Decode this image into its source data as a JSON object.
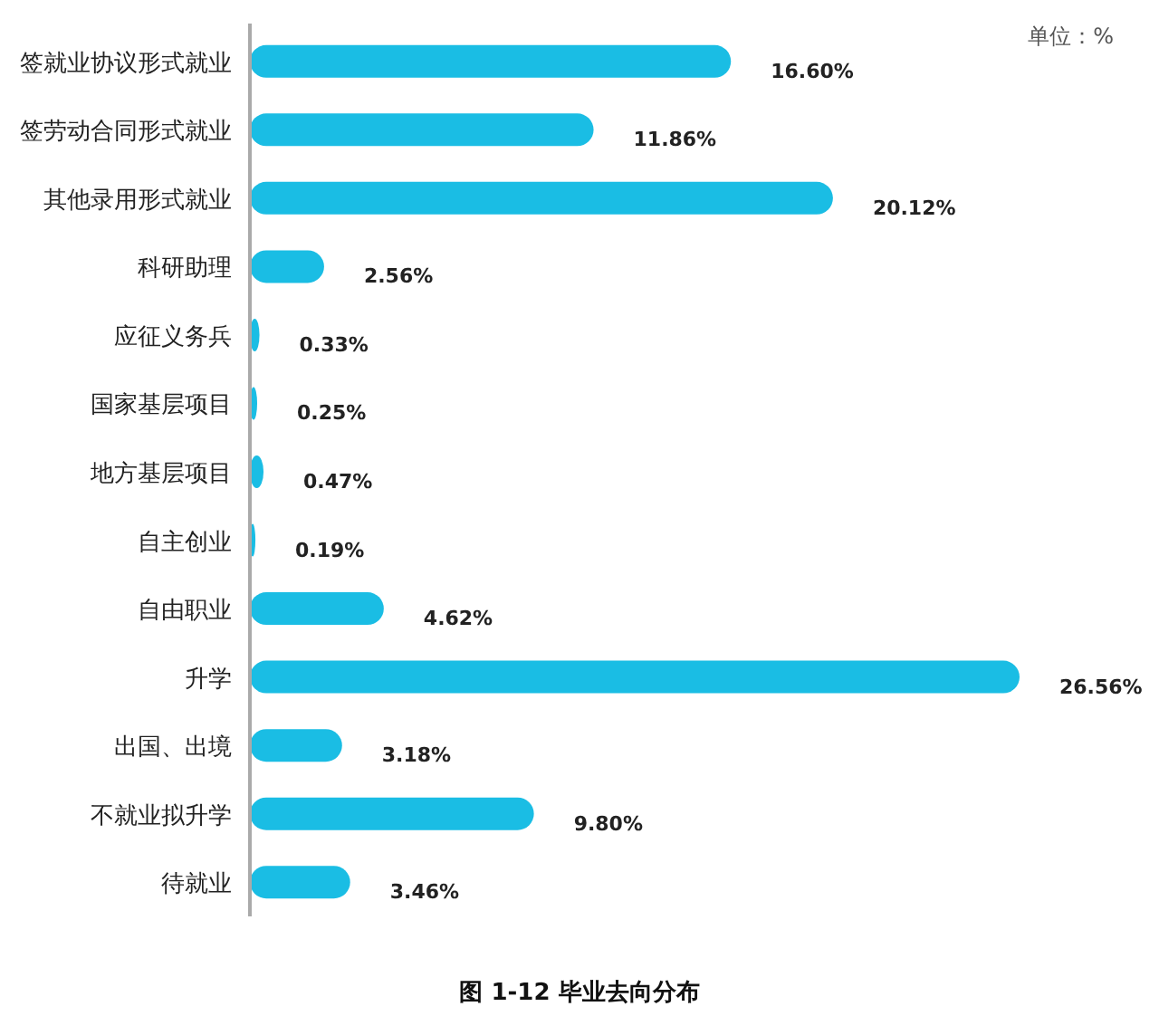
{
  "chart_data": {
    "type": "bar",
    "orientation": "horizontal",
    "title": "图 1-12  毕业去向分布",
    "annotations": [
      "单位：%"
    ],
    "categories": [
      "签就业协议形式就业",
      "签劳动合同形式就业",
      "其他录用形式就业",
      "科研助理",
      "应征义务兵",
      "国家基层项目",
      "地方基层项目",
      "自主创业",
      "自由职业",
      "升学",
      "出国、出境",
      "不就业拟升学",
      "待就业"
    ],
    "values": [
      16.6,
      11.86,
      20.12,
      2.56,
      0.33,
      0.25,
      0.47,
      0.19,
      4.62,
      26.56,
      3.18,
      9.8,
      3.46
    ],
    "value_labels": [
      "16.60%",
      "11.86%",
      "20.12%",
      "2.56%",
      "0.33%",
      "0.25%",
      "0.47%",
      "0.19%",
      "4.62%",
      "26.56%",
      "3.18%",
      "9.80%",
      "3.46%"
    ],
    "color": "#1abde4"
  }
}
